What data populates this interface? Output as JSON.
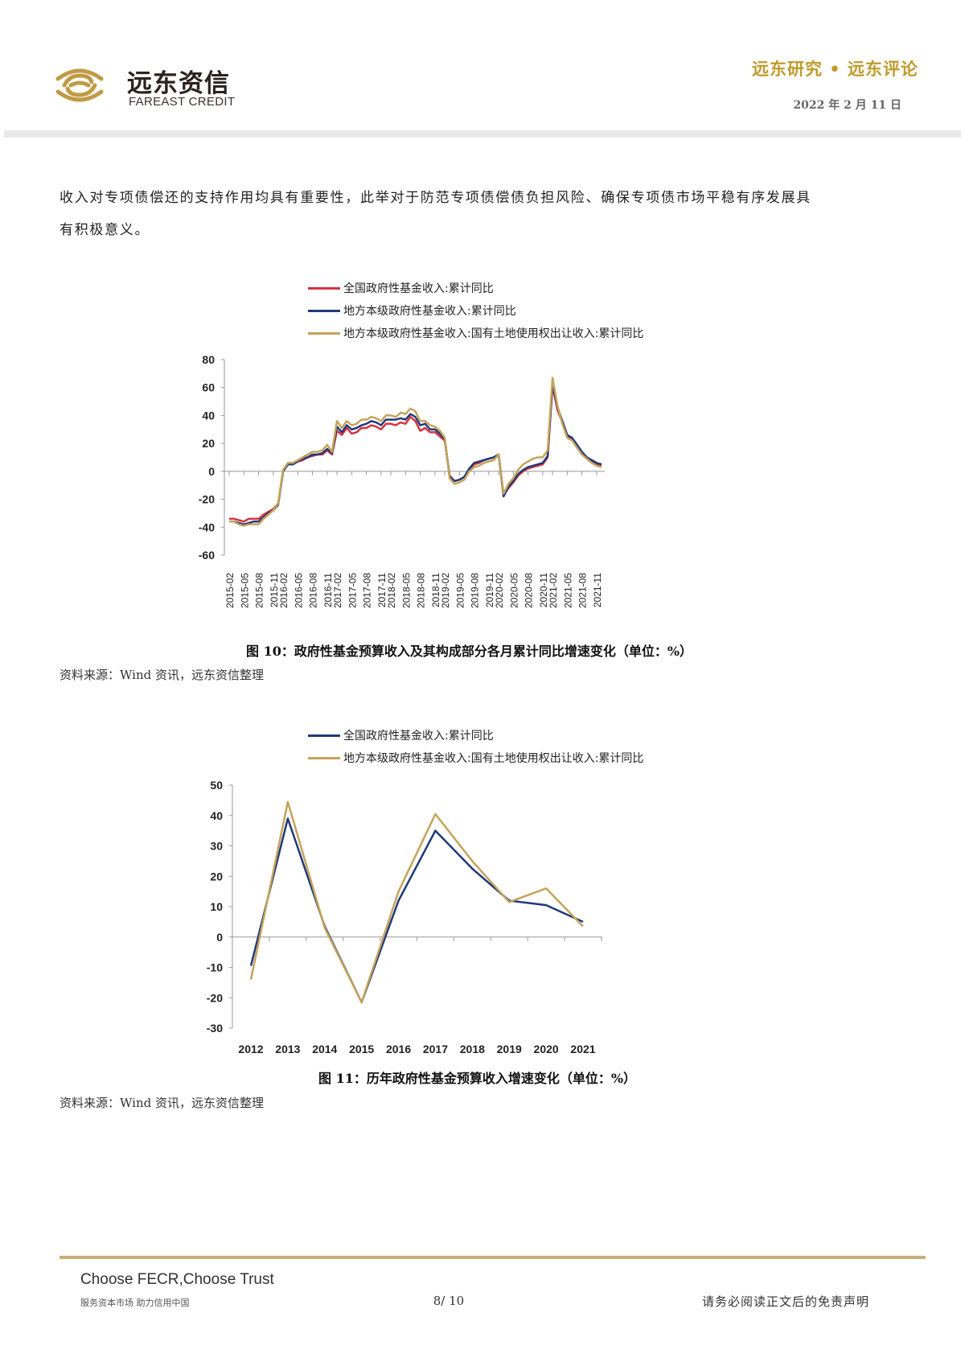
{
  "header": {
    "logo_cn": "远东资信",
    "logo_en": "FAREAST CREDIT",
    "title": "远东研究 • 远东评论",
    "date": "2022 年 2 月 11 日",
    "colors": {
      "gold": "#c19a2b",
      "bar": "#e9e9ea"
    }
  },
  "body": {
    "paragraph_line1": "收入对专项债偿还的支持作用均具有重要性，此举对于防范专项债偿债负担风险、确保专项债市场平稳有序发展具",
    "paragraph_line2": "有积极意义。"
  },
  "figure10": {
    "caption": "图 10：政府性基金预算收入及其构成部分各月累计同比增速变化（单位：%）",
    "source": "资料来源：Wind 资讯，远东资信整理"
  },
  "figure11": {
    "caption": "图 11：历年政府性基金预算收入增速变化（单位：%）",
    "source": "资料来源：Wind 资讯，远东资信整理"
  },
  "chart_data": [
    {
      "type": "line",
      "title": "",
      "xlabel": "",
      "ylabel": "",
      "ylim": [
        -60,
        80
      ],
      "yticks": [
        80,
        60,
        40,
        20,
        0,
        -20,
        -40,
        -60
      ],
      "grid": false,
      "legend_position": "top",
      "x_tick_labels": [
        "2015-02",
        "2015-05",
        "2015-08",
        "2015-11",
        "2016-02",
        "2016-05",
        "2016-08",
        "2016-11",
        "2017-02",
        "2017-05",
        "2017-08",
        "2017-11",
        "2018-02",
        "2018-05",
        "2018-08",
        "2018-11",
        "2019-02",
        "2019-05",
        "2019-08",
        "2019-11",
        "2020-02",
        "2020-05",
        "2020-08",
        "2020-11",
        "2021-02",
        "2021-05",
        "2021-08",
        "2021-11"
      ],
      "x": [
        "2015-02",
        "2015-03",
        "2015-04",
        "2015-05",
        "2015-06",
        "2015-07",
        "2015-08",
        "2015-09",
        "2015-10",
        "2015-11",
        "2015-12",
        "2016-02",
        "2016-03",
        "2016-04",
        "2016-05",
        "2016-06",
        "2016-07",
        "2016-08",
        "2016-09",
        "2016-10",
        "2016-11",
        "2016-12",
        "2017-02",
        "2017-03",
        "2017-04",
        "2017-05",
        "2017-06",
        "2017-07",
        "2017-08",
        "2017-09",
        "2017-10",
        "2017-11",
        "2017-12",
        "2018-02",
        "2018-03",
        "2018-04",
        "2018-05",
        "2018-06",
        "2018-07",
        "2018-08",
        "2018-09",
        "2018-10",
        "2018-11",
        "2018-12",
        "2019-02",
        "2019-03",
        "2019-04",
        "2019-05",
        "2019-06",
        "2019-07",
        "2019-08",
        "2019-09",
        "2019-10",
        "2019-11",
        "2019-12",
        "2020-02",
        "2020-03",
        "2020-04",
        "2020-05",
        "2020-06",
        "2020-07",
        "2020-08",
        "2020-09",
        "2020-10",
        "2020-11",
        "2020-12",
        "2021-02",
        "2021-03",
        "2021-04",
        "2021-05",
        "2021-06",
        "2021-07",
        "2021-08",
        "2021-09",
        "2021-10",
        "2021-11",
        "2021-12"
      ],
      "series": [
        {
          "name": "全国政府性基金收入:累计同比",
          "color": "#d6333f",
          "values": [
            -34,
            -34,
            -35,
            -36,
            -34,
            -34,
            -34,
            -31,
            -29,
            -27,
            -23,
            0,
            5,
            5,
            7,
            8,
            10,
            11,
            12,
            12,
            15,
            12,
            29,
            26,
            31,
            27,
            28,
            31,
            31,
            33,
            32,
            30,
            34,
            34,
            33,
            35,
            34,
            39,
            36,
            29,
            31,
            28,
            28,
            25,
            22,
            -3,
            -7,
            -6,
            -4,
            1,
            5,
            6,
            8,
            9,
            10,
            12,
            -17,
            -12,
            -8,
            -3,
            0,
            2,
            3,
            4,
            5,
            10,
            61,
            44,
            35,
            25,
            23,
            18,
            13,
            9,
            7,
            5,
            4
          ]
        },
        {
          "name": "地方本级政府性基金收入:累计同比",
          "color": "#1f3a7a",
          "values": [
            -36,
            -36,
            -37,
            -38,
            -37,
            -36,
            -36,
            -33,
            -30,
            -28,
            -24,
            0,
            5,
            5,
            7,
            9,
            10,
            12,
            12,
            13,
            16,
            13,
            32,
            28,
            33,
            30,
            31,
            33,
            34,
            36,
            35,
            33,
            37,
            37,
            37,
            38,
            37,
            41,
            39,
            33,
            34,
            30,
            30,
            27,
            23,
            -4,
            -7,
            -6,
            -4,
            2,
            6,
            7,
            8,
            9,
            10,
            12,
            -18,
            -11,
            -7,
            -2,
            1,
            3,
            4,
            5,
            6,
            11,
            63,
            46,
            36,
            26,
            24,
            19,
            14,
            10,
            8,
            6,
            5
          ]
        },
        {
          "name": "地方本级政府性基金收入:国有土地使用权出让收入:累计同比",
          "color": "#c6a35a",
          "values": [
            -36,
            -36,
            -38,
            -39,
            -38,
            -38,
            -38,
            -34,
            -31,
            -28,
            -23,
            1,
            6,
            6,
            8,
            10,
            12,
            14,
            14,
            15,
            19,
            14,
            36,
            31,
            36,
            33,
            34,
            37,
            37,
            39,
            38,
            36,
            40,
            40,
            39,
            42,
            41,
            45,
            43,
            36,
            36,
            33,
            32,
            29,
            24,
            -5,
            -9,
            -8,
            -6,
            0,
            3,
            4,
            6,
            7,
            8,
            12,
            -16,
            -9,
            -5,
            1,
            5,
            7,
            9,
            10,
            10,
            15,
            67,
            47,
            34,
            24,
            22,
            17,
            12,
            9,
            6,
            4,
            3
          ]
        }
      ]
    },
    {
      "type": "line",
      "title": "",
      "xlabel": "",
      "ylabel": "",
      "ylim": [
        -30,
        50
      ],
      "yticks": [
        50,
        40,
        30,
        20,
        10,
        0,
        -10,
        -20,
        -30
      ],
      "grid": false,
      "legend_position": "top",
      "categories": [
        "2012",
        "2013",
        "2014",
        "2015",
        "2016",
        "2017",
        "2018",
        "2019",
        "2020",
        "2021"
      ],
      "series": [
        {
          "name": "全国政府性基金收入:累计同比",
          "color": "#1f3a7a",
          "values": [
            -9.5,
            39,
            3.5,
            -21.5,
            12,
            35,
            22.5,
            12,
            10.5,
            5
          ]
        },
        {
          "name": "地方本级政府性基金收入:国有土地使用权出让收入:累计同比",
          "color": "#c6a35a",
          "values": [
            -14,
            44.5,
            3,
            -21.5,
            15,
            40.5,
            25,
            11.5,
            16,
            3.5
          ]
        }
      ]
    }
  ],
  "footer": {
    "slogan_en": "Choose FECR,Choose Trust",
    "slogan_cn": "服务资本市场  助力信用中国",
    "page": "8/ 10",
    "disclaimer": "请务必阅读正文后的免责声明",
    "rule_color": "#c9ad75"
  }
}
